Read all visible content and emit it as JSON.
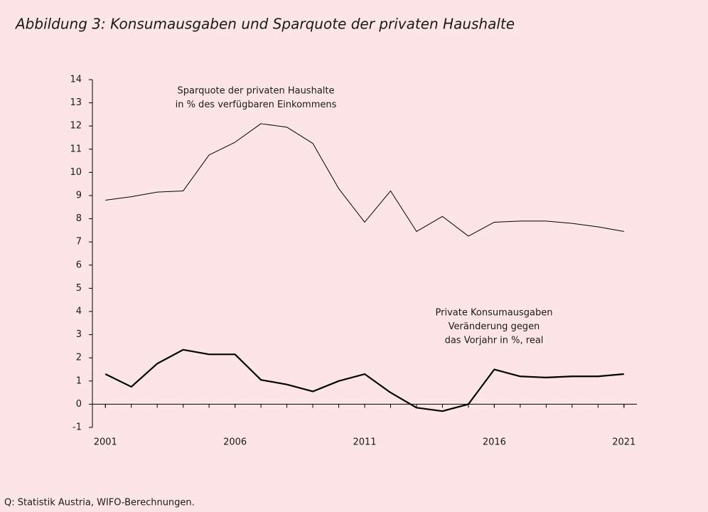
{
  "chart_data": {
    "type": "line",
    "title": "Abbildung 3: Konsumausgaben und Sparquote der privaten Haushalte",
    "source": "Q: Statistik Austria, WIFO-Berechnungen.",
    "annotations": [
      [
        "Sparquote der privaten Haushalte",
        "in % des verfügbaren Einkommens"
      ],
      [
        "Private Konsumausgaben",
        "Veränderung gegen",
        "das Vorjahr in %, real"
      ]
    ],
    "x": [
      2001,
      2002,
      2003,
      2004,
      2005,
      2006,
      2007,
      2008,
      2009,
      2010,
      2011,
      2012,
      2013,
      2014,
      2015,
      2016,
      2017,
      2018,
      2019,
      2020,
      2021
    ],
    "series": [
      {
        "color": "#000000",
        "values": [
          8.8,
          8.95,
          9.15,
          9.2,
          10.75,
          11.3,
          12.1,
          11.95,
          11.25,
          9.3,
          7.85,
          9.2,
          7.45,
          8.1,
          7.25,
          7.85,
          7.9,
          7.9,
          7.8,
          7.65,
          7.45
        ]
      },
      {
        "color": "#000000",
        "values": [
          1.3,
          0.75,
          1.75,
          2.35,
          2.15,
          2.15,
          1.05,
          0.85,
          0.55,
          1.0,
          1.3,
          0.5,
          -0.15,
          -0.3,
          0.0,
          1.5,
          1.2,
          1.15,
          1.2,
          1.2,
          1.3
        ]
      }
    ],
    "xlim": [
      2000.5,
      2021.5
    ],
    "xticks": [
      2001,
      2006,
      2011,
      2016,
      2021
    ],
    "ylim": [
      -1,
      14
    ],
    "yticks": [
      -1,
      0,
      1,
      2,
      3,
      4,
      5,
      6,
      7,
      8,
      9,
      10,
      11,
      12,
      13,
      14
    ]
  }
}
